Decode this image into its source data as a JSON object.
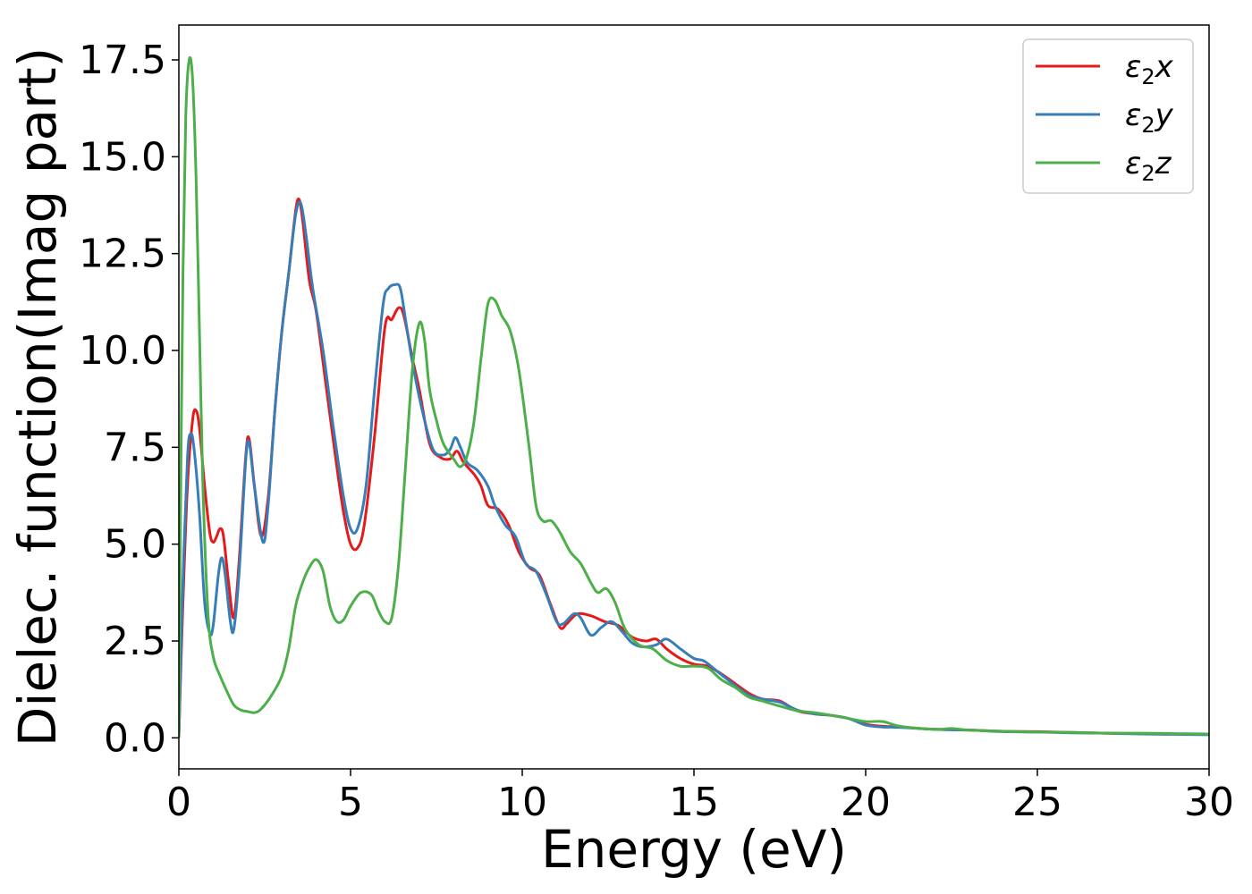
{
  "chart_data": {
    "type": "line",
    "title": "",
    "xlabel": "Energy (eV)",
    "ylabel": "Dielec. function(Imag part)",
    "xlim": [
      0,
      30
    ],
    "ylim": [
      -0.8,
      18.4
    ],
    "xticks": [
      0,
      5,
      10,
      15,
      20,
      25,
      30
    ],
    "xtick_labels": [
      "0",
      "5",
      "10",
      "15",
      "20",
      "25",
      "30"
    ],
    "yticks": [
      0,
      2.5,
      5,
      7.5,
      10,
      12.5,
      15,
      17.5
    ],
    "ytick_labels": [
      "0.0",
      "2.5",
      "5.0",
      "7.5",
      "10.0",
      "12.5",
      "15.0",
      "17.5"
    ],
    "grid": false,
    "legend_position": "top-right",
    "series": [
      {
        "name": "ε2x",
        "legend": {
          "sym": "ε",
          "sub": "2",
          "var": "x"
        },
        "color": "#e41a1c",
        "points": [
          [
            0,
            0
          ],
          [
            0.1,
            3.0
          ],
          [
            0.25,
            6.5
          ],
          [
            0.4,
            8.2
          ],
          [
            0.5,
            8.45
          ],
          [
            0.6,
            8.0
          ],
          [
            0.75,
            6.5
          ],
          [
            0.9,
            5.3
          ],
          [
            1.0,
            5.05
          ],
          [
            1.1,
            5.2
          ],
          [
            1.2,
            5.4
          ],
          [
            1.3,
            5.2
          ],
          [
            1.45,
            4.0
          ],
          [
            1.6,
            3.1
          ],
          [
            1.75,
            4.5
          ],
          [
            1.95,
            7.3
          ],
          [
            2.05,
            7.7
          ],
          [
            2.2,
            6.5
          ],
          [
            2.4,
            5.2
          ],
          [
            2.6,
            6.2
          ],
          [
            2.8,
            8.5
          ],
          [
            3.0,
            10.5
          ],
          [
            3.2,
            12.0
          ],
          [
            3.4,
            13.6
          ],
          [
            3.5,
            13.9
          ],
          [
            3.6,
            13.4
          ],
          [
            3.8,
            11.8
          ],
          [
            4.0,
            11.0
          ],
          [
            4.3,
            9.0
          ],
          [
            4.6,
            7.0
          ],
          [
            4.8,
            5.8
          ],
          [
            5.0,
            5.0
          ],
          [
            5.2,
            4.9
          ],
          [
            5.4,
            5.5
          ],
          [
            5.7,
            7.8
          ],
          [
            6.0,
            10.6
          ],
          [
            6.2,
            10.8
          ],
          [
            6.4,
            11.1
          ],
          [
            6.55,
            10.9
          ],
          [
            6.8,
            9.8
          ],
          [
            7.0,
            9.0
          ],
          [
            7.3,
            7.6
          ],
          [
            7.6,
            7.25
          ],
          [
            7.9,
            7.2
          ],
          [
            8.1,
            7.4
          ],
          [
            8.3,
            7.1
          ],
          [
            8.6,
            6.8
          ],
          [
            8.8,
            6.5
          ],
          [
            9.0,
            6.0
          ],
          [
            9.3,
            5.9
          ],
          [
            9.6,
            5.5
          ],
          [
            9.9,
            4.8
          ],
          [
            10.2,
            4.4
          ],
          [
            10.5,
            4.2
          ],
          [
            10.8,
            3.5
          ],
          [
            11.1,
            2.85
          ],
          [
            11.3,
            2.95
          ],
          [
            11.6,
            3.2
          ],
          [
            12.0,
            3.15
          ],
          [
            12.4,
            3.0
          ],
          [
            12.8,
            2.9
          ],
          [
            13.2,
            2.6
          ],
          [
            13.6,
            2.5
          ],
          [
            13.9,
            2.55
          ],
          [
            14.2,
            2.3
          ],
          [
            14.6,
            2.05
          ],
          [
            15.0,
            1.9
          ],
          [
            15.4,
            1.85
          ],
          [
            15.8,
            1.65
          ],
          [
            16.2,
            1.4
          ],
          [
            16.6,
            1.15
          ],
          [
            17.0,
            1.0
          ],
          [
            17.5,
            0.95
          ],
          [
            18.0,
            0.7
          ],
          [
            18.5,
            0.62
          ],
          [
            19.0,
            0.58
          ],
          [
            19.5,
            0.5
          ],
          [
            20.0,
            0.35
          ],
          [
            20.5,
            0.3
          ],
          [
            21.0,
            0.28
          ],
          [
            22.0,
            0.22
          ],
          [
            23.0,
            0.2
          ],
          [
            24.0,
            0.17
          ],
          [
            25.0,
            0.16
          ],
          [
            26.0,
            0.14
          ],
          [
            27.0,
            0.12
          ],
          [
            28.0,
            0.11
          ],
          [
            29.0,
            0.1
          ],
          [
            30.0,
            0.09
          ]
        ]
      },
      {
        "name": "ε2y",
        "legend": {
          "sym": "ε",
          "sub": "2",
          "var": "y"
        },
        "color": "#377eb8",
        "points": [
          [
            0,
            0
          ],
          [
            0.1,
            3.5
          ],
          [
            0.25,
            7.2
          ],
          [
            0.35,
            7.85
          ],
          [
            0.45,
            7.4
          ],
          [
            0.6,
            5.8
          ],
          [
            0.75,
            3.5
          ],
          [
            0.9,
            2.7
          ],
          [
            1.0,
            2.9
          ],
          [
            1.15,
            4.2
          ],
          [
            1.25,
            4.65
          ],
          [
            1.35,
            4.2
          ],
          [
            1.5,
            3.0
          ],
          [
            1.6,
            2.8
          ],
          [
            1.75,
            4.2
          ],
          [
            1.95,
            7.2
          ],
          [
            2.05,
            7.6
          ],
          [
            2.2,
            6.5
          ],
          [
            2.45,
            5.05
          ],
          [
            2.6,
            6.0
          ],
          [
            2.8,
            8.5
          ],
          [
            3.0,
            10.5
          ],
          [
            3.2,
            12.0
          ],
          [
            3.4,
            13.5
          ],
          [
            3.55,
            13.8
          ],
          [
            3.7,
            13.0
          ],
          [
            3.9,
            11.6
          ],
          [
            4.2,
            10.0
          ],
          [
            4.5,
            8.0
          ],
          [
            4.8,
            6.2
          ],
          [
            5.0,
            5.4
          ],
          [
            5.2,
            5.4
          ],
          [
            5.45,
            6.5
          ],
          [
            5.7,
            9.0
          ],
          [
            5.95,
            11.2
          ],
          [
            6.1,
            11.6
          ],
          [
            6.3,
            11.7
          ],
          [
            6.45,
            11.6
          ],
          [
            6.6,
            10.8
          ],
          [
            6.8,
            9.7
          ],
          [
            7.1,
            8.4
          ],
          [
            7.4,
            7.45
          ],
          [
            7.7,
            7.3
          ],
          [
            7.9,
            7.45
          ],
          [
            8.05,
            7.75
          ],
          [
            8.2,
            7.5
          ],
          [
            8.4,
            7.1
          ],
          [
            8.7,
            6.9
          ],
          [
            9.0,
            6.5
          ],
          [
            9.2,
            6.0
          ],
          [
            9.5,
            5.5
          ],
          [
            9.8,
            5.2
          ],
          [
            10.1,
            4.5
          ],
          [
            10.4,
            4.3
          ],
          [
            10.7,
            3.7
          ],
          [
            11.0,
            3.0
          ],
          [
            11.2,
            2.95
          ],
          [
            11.5,
            3.2
          ],
          [
            11.7,
            3.1
          ],
          [
            12.0,
            2.65
          ],
          [
            12.3,
            2.85
          ],
          [
            12.6,
            3.0
          ],
          [
            12.9,
            2.75
          ],
          [
            13.2,
            2.45
          ],
          [
            13.5,
            2.35
          ],
          [
            13.9,
            2.4
          ],
          [
            14.2,
            2.55
          ],
          [
            14.6,
            2.3
          ],
          [
            15.0,
            2.05
          ],
          [
            15.3,
            1.98
          ],
          [
            15.7,
            1.7
          ],
          [
            16.2,
            1.35
          ],
          [
            16.6,
            1.1
          ],
          [
            17.0,
            1.0
          ],
          [
            17.5,
            0.92
          ],
          [
            18.0,
            0.72
          ],
          [
            18.5,
            0.62
          ],
          [
            19.0,
            0.58
          ],
          [
            19.5,
            0.5
          ],
          [
            20.0,
            0.33
          ],
          [
            20.5,
            0.28
          ],
          [
            21.0,
            0.27
          ],
          [
            22.0,
            0.22
          ],
          [
            23.0,
            0.2
          ],
          [
            24.0,
            0.16
          ],
          [
            25.0,
            0.15
          ],
          [
            26.0,
            0.13
          ],
          [
            27.0,
            0.12
          ],
          [
            28.0,
            0.1
          ],
          [
            29.0,
            0.09
          ],
          [
            30.0,
            0.08
          ]
        ]
      },
      {
        "name": "ε2z",
        "legend": {
          "sym": "ε",
          "sub": "2",
          "var": "z"
        },
        "color": "#4daf4a",
        "points": [
          [
            0,
            0
          ],
          [
            0.05,
            6.0
          ],
          [
            0.12,
            12.0
          ],
          [
            0.2,
            16.0
          ],
          [
            0.3,
            17.5
          ],
          [
            0.4,
            17.0
          ],
          [
            0.5,
            14.5
          ],
          [
            0.6,
            10.5
          ],
          [
            0.7,
            6.5
          ],
          [
            0.85,
            3.2
          ],
          [
            1.0,
            2.1
          ],
          [
            1.2,
            1.6
          ],
          [
            1.4,
            1.2
          ],
          [
            1.6,
            0.85
          ],
          [
            1.8,
            0.72
          ],
          [
            2.0,
            0.68
          ],
          [
            2.2,
            0.65
          ],
          [
            2.4,
            0.75
          ],
          [
            2.7,
            1.1
          ],
          [
            3.0,
            1.6
          ],
          [
            3.2,
            2.3
          ],
          [
            3.4,
            3.4
          ],
          [
            3.6,
            4.0
          ],
          [
            3.8,
            4.4
          ],
          [
            4.0,
            4.6
          ],
          [
            4.2,
            4.3
          ],
          [
            4.4,
            3.4
          ],
          [
            4.6,
            3.0
          ],
          [
            4.8,
            3.05
          ],
          [
            5.0,
            3.4
          ],
          [
            5.3,
            3.75
          ],
          [
            5.6,
            3.7
          ],
          [
            5.8,
            3.3
          ],
          [
            6.0,
            3.0
          ],
          [
            6.2,
            3.1
          ],
          [
            6.4,
            4.5
          ],
          [
            6.6,
            7.0
          ],
          [
            6.8,
            9.5
          ],
          [
            7.0,
            10.7
          ],
          [
            7.15,
            10.3
          ],
          [
            7.3,
            9.0
          ],
          [
            7.5,
            8.2
          ],
          [
            7.7,
            7.6
          ],
          [
            8.0,
            7.2
          ],
          [
            8.2,
            7.0
          ],
          [
            8.4,
            7.3
          ],
          [
            8.6,
            8.2
          ],
          [
            8.8,
            9.8
          ],
          [
            9.0,
            11.2
          ],
          [
            9.2,
            11.3
          ],
          [
            9.4,
            10.9
          ],
          [
            9.65,
            10.5
          ],
          [
            9.9,
            9.5
          ],
          [
            10.2,
            7.5
          ],
          [
            10.4,
            6.0
          ],
          [
            10.6,
            5.6
          ],
          [
            10.85,
            5.6
          ],
          [
            11.1,
            5.3
          ],
          [
            11.4,
            4.8
          ],
          [
            11.7,
            4.5
          ],
          [
            12.0,
            4.0
          ],
          [
            12.2,
            3.75
          ],
          [
            12.45,
            3.85
          ],
          [
            12.7,
            3.5
          ],
          [
            13.0,
            2.8
          ],
          [
            13.4,
            2.4
          ],
          [
            13.8,
            2.3
          ],
          [
            14.2,
            2.0
          ],
          [
            14.6,
            1.85
          ],
          [
            15.0,
            1.85
          ],
          [
            15.4,
            1.8
          ],
          [
            15.8,
            1.5
          ],
          [
            16.2,
            1.3
          ],
          [
            16.6,
            1.05
          ],
          [
            17.0,
            0.95
          ],
          [
            17.5,
            0.82
          ],
          [
            18.0,
            0.7
          ],
          [
            18.5,
            0.65
          ],
          [
            19.0,
            0.58
          ],
          [
            19.5,
            0.5
          ],
          [
            20.0,
            0.42
          ],
          [
            20.5,
            0.42
          ],
          [
            21.0,
            0.3
          ],
          [
            22.0,
            0.22
          ],
          [
            22.5,
            0.24
          ],
          [
            23.0,
            0.2
          ],
          [
            24.0,
            0.17
          ],
          [
            25.0,
            0.15
          ],
          [
            26.0,
            0.14
          ],
          [
            27.0,
            0.12
          ],
          [
            28.0,
            0.12
          ],
          [
            29.0,
            0.11
          ],
          [
            30.0,
            0.1
          ]
        ]
      }
    ]
  }
}
